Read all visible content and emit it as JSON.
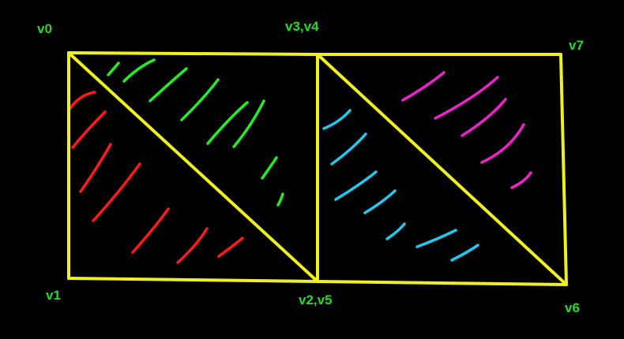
{
  "colors": {
    "background": "#000000",
    "edge": "#f0f020",
    "label": "#22dd22",
    "triangle_fill_red": "#ff1a1a",
    "triangle_fill_green": "#22ee22",
    "triangle_fill_cyan": "#22c8ee",
    "triangle_fill_magenta": "#ee22cc"
  },
  "vertex_labels": {
    "v0": "v0",
    "v1": "v1",
    "v2_v5": "v2,v5",
    "v3_v4": "v3,v4",
    "v6": "v6",
    "v7": "v7"
  },
  "triangles": [
    {
      "name": "triangle-v0-v1-v2",
      "fill_color": "red"
    },
    {
      "name": "triangle-v0-v2-v3",
      "fill_color": "green"
    },
    {
      "name": "triangle-v4-v5-v6",
      "fill_color": "cyan"
    },
    {
      "name": "triangle-v4-v6-v7",
      "fill_color": "magenta"
    }
  ]
}
